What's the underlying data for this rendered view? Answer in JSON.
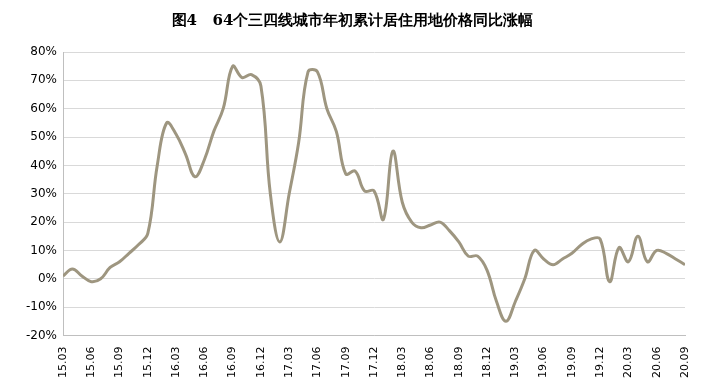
{
  "chart_data": {
    "type": "line",
    "title": "图4   64个三四线城市年初累计居住用地价格同比涨幅",
    "categories": [
      "15.03",
      null,
      null,
      "15.06",
      null,
      null,
      "15.09",
      null,
      null,
      "15.12",
      null,
      null,
      "16.03",
      null,
      null,
      "16.06",
      null,
      null,
      "16.09",
      null,
      null,
      "16.12",
      null,
      null,
      "17.03",
      null,
      null,
      "17.06",
      null,
      null,
      "17.09",
      null,
      null,
      "17.12",
      null,
      null,
      "18.03",
      null,
      null,
      "18.06",
      null,
      null,
      "18.09",
      null,
      null,
      "18.12",
      null,
      null,
      "19.03",
      null,
      null,
      "19.06",
      null,
      null,
      "19.09",
      null,
      null,
      "19.12",
      null,
      null,
      "20.03",
      null,
      null,
      "20.06",
      null,
      null,
      "20.09"
    ],
    "values": [
      1,
      3.5,
      1,
      -1,
      0,
      4,
      6,
      9,
      12,
      16,
      40,
      55,
      51,
      44,
      36,
      42,
      52,
      60,
      75,
      71,
      72,
      68,
      30,
      13,
      30,
      48,
      73,
      73,
      60,
      52,
      37,
      38,
      31,
      31,
      21,
      45,
      27,
      20,
      18,
      19,
      20,
      17,
      13,
      8,
      8,
      3,
      -8,
      -15,
      -8,
      0,
      10,
      7,
      5,
      7,
      9,
      12,
      14,
      14,
      -1,
      11,
      6,
      15,
      6,
      10,
      9,
      7,
      5
    ],
    "color": "#9e9680",
    "ylim": [
      -20,
      80
    ],
    "yticks": [
      {
        "value": -20,
        "label": "-20%"
      },
      {
        "value": -10,
        "label": "-10%"
      },
      {
        "value": 0,
        "label": "0%"
      },
      {
        "value": 10,
        "label": "10%"
      },
      {
        "value": 20,
        "label": "20%"
      },
      {
        "value": 30,
        "label": "30%"
      },
      {
        "value": 40,
        "label": "40%"
      },
      {
        "value": 50,
        "label": "50%"
      },
      {
        "value": 60,
        "label": "60%"
      },
      {
        "value": 70,
        "label": "70%"
      },
      {
        "value": 80,
        "label": "80%"
      }
    ],
    "grid": true
  }
}
